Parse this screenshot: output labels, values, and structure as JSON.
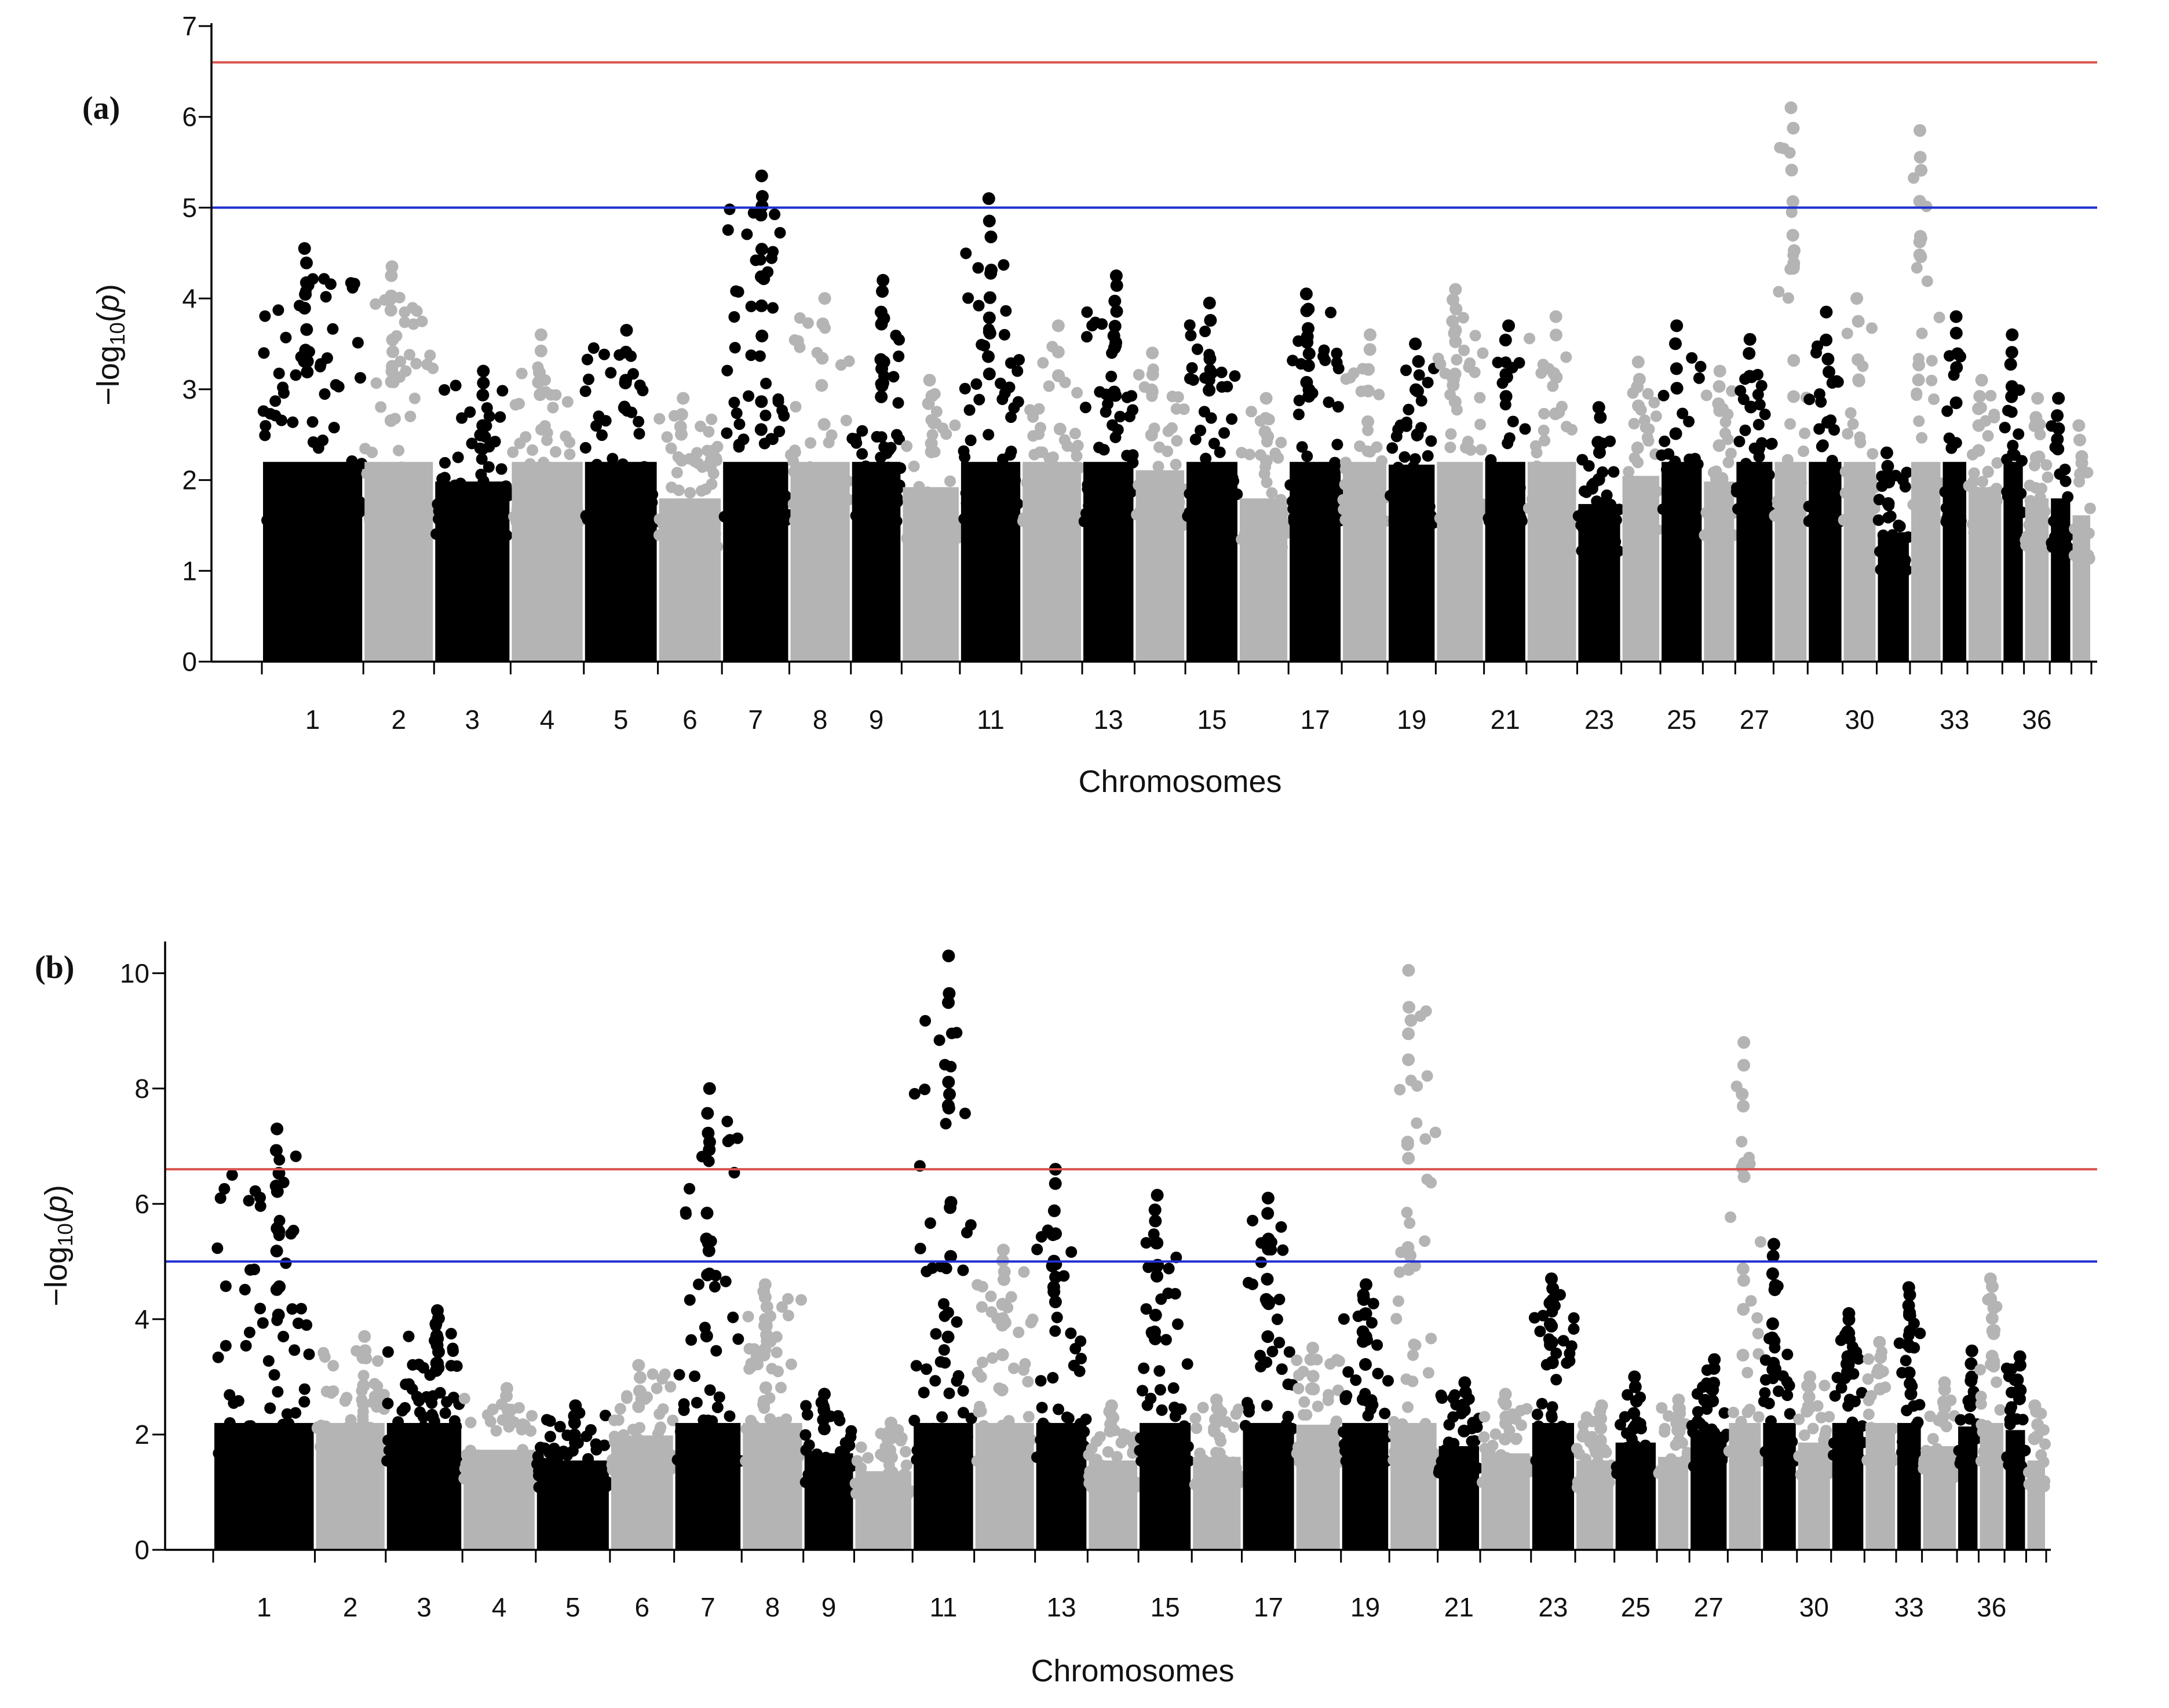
{
  "chart_data": [
    {
      "panel": "(a)",
      "type": "scatter",
      "subtype": "manhattan",
      "xlabel": "Chromosomes",
      "ylabel": "−log10(p)",
      "ylim": [
        0,
        7
      ],
      "yticks": [
        0,
        1,
        2,
        3,
        4,
        5,
        6,
        7
      ],
      "xtick_labels": [
        "1",
        "2",
        "3",
        "4",
        "5",
        "6",
        "7",
        "8",
        "9",
        "11",
        "13",
        "15",
        "17",
        "19",
        "21",
        "23",
        "25",
        "27",
        "30",
        "33",
        "36"
      ],
      "thresholds": [
        {
          "name": "genome-wide",
          "value": 6.6,
          "color": "#d9534f"
        },
        {
          "name": "suggestive",
          "value": 5.0,
          "color": "#1f2fd1"
        }
      ],
      "series_colors": {
        "odd": "#000000",
        "even": "#b4b4b4"
      },
      "chromosomes": [
        {
          "chr": 1,
          "max": 4.55
        },
        {
          "chr": 2,
          "max": 4.35
        },
        {
          "chr": 3,
          "max": 3.2
        },
        {
          "chr": 4,
          "max": 3.6
        },
        {
          "chr": 5,
          "max": 3.65
        },
        {
          "chr": 6,
          "max": 2.9
        },
        {
          "chr": 7,
          "max": 5.35
        },
        {
          "chr": 8,
          "max": 4.0
        },
        {
          "chr": 9,
          "max": 4.2
        },
        {
          "chr": 10,
          "max": 3.1
        },
        {
          "chr": 11,
          "max": 5.1
        },
        {
          "chr": 12,
          "max": 3.7
        },
        {
          "chr": 13,
          "max": 4.25
        },
        {
          "chr": 14,
          "max": 3.4
        },
        {
          "chr": 15,
          "max": 3.95
        },
        {
          "chr": 16,
          "max": 2.9
        },
        {
          "chr": 17,
          "max": 4.05
        },
        {
          "chr": 18,
          "max": 3.6
        },
        {
          "chr": 19,
          "max": 3.5
        },
        {
          "chr": 20,
          "max": 4.1
        },
        {
          "chr": 21,
          "max": 3.7
        },
        {
          "chr": 22,
          "max": 3.8
        },
        {
          "chr": 23,
          "max": 2.8
        },
        {
          "chr": 24,
          "max": 3.3
        },
        {
          "chr": 25,
          "max": 3.7
        },
        {
          "chr": 26,
          "max": 3.2
        },
        {
          "chr": 27,
          "max": 3.55
        },
        {
          "chr": 28,
          "max": 6.1
        },
        {
          "chr": 29,
          "max": 3.85
        },
        {
          "chr": 30,
          "max": 4.0
        },
        {
          "chr": 31,
          "max": 2.3
        },
        {
          "chr": 32,
          "max": 5.85
        },
        {
          "chr": 33,
          "max": 3.8
        },
        {
          "chr": 34,
          "max": 3.1
        },
        {
          "chr": 35,
          "max": 3.6
        },
        {
          "chr": 36,
          "max": 2.9
        },
        {
          "chr": 37,
          "max": 2.9
        },
        {
          "chr": 38,
          "max": 2.6
        }
      ]
    },
    {
      "panel": "(b)",
      "type": "scatter",
      "subtype": "manhattan",
      "xlabel": "Chromosomes",
      "ylabel": "−log10(p)",
      "ylim": [
        0,
        10.5
      ],
      "yticks": [
        0,
        2,
        4,
        6,
        8,
        10
      ],
      "xtick_labels": [
        "1",
        "2",
        "3",
        "4",
        "5",
        "6",
        "7",
        "8",
        "9",
        "11",
        "13",
        "15",
        "17",
        "19",
        "21",
        "23",
        "25",
        "27",
        "30",
        "33",
        "36"
      ],
      "thresholds": [
        {
          "name": "genome-wide",
          "value": 6.6,
          "color": "#d9534f"
        },
        {
          "name": "suggestive",
          "value": 5.0,
          "color": "#1f2fd1"
        }
      ],
      "series_colors": {
        "odd": "#000000",
        "even": "#b4b4b4"
      },
      "chromosomes": [
        {
          "chr": 1,
          "max": 7.3
        },
        {
          "chr": 2,
          "max": 3.7
        },
        {
          "chr": 3,
          "max": 4.15
        },
        {
          "chr": 4,
          "max": 2.8
        },
        {
          "chr": 5,
          "max": 2.5
        },
        {
          "chr": 6,
          "max": 3.2
        },
        {
          "chr": 7,
          "max": 8.0
        },
        {
          "chr": 8,
          "max": 4.6
        },
        {
          "chr": 9,
          "max": 2.7
        },
        {
          "chr": 10,
          "max": 2.2
        },
        {
          "chr": 11,
          "max": 10.3
        },
        {
          "chr": 12,
          "max": 5.2
        },
        {
          "chr": 13,
          "max": 6.6
        },
        {
          "chr": 14,
          "max": 2.5
        },
        {
          "chr": 15,
          "max": 6.15
        },
        {
          "chr": 16,
          "max": 2.6
        },
        {
          "chr": 17,
          "max": 6.1
        },
        {
          "chr": 18,
          "max": 3.5
        },
        {
          "chr": 19,
          "max": 4.6
        },
        {
          "chr": 20,
          "max": 10.05
        },
        {
          "chr": 21,
          "max": 2.9
        },
        {
          "chr": 22,
          "max": 2.7
        },
        {
          "chr": 23,
          "max": 4.7
        },
        {
          "chr": 24,
          "max": 2.5
        },
        {
          "chr": 25,
          "max": 3.0
        },
        {
          "chr": 26,
          "max": 2.6
        },
        {
          "chr": 27,
          "max": 3.3
        },
        {
          "chr": 28,
          "max": 8.8
        },
        {
          "chr": 29,
          "max": 5.3
        },
        {
          "chr": 30,
          "max": 3.0
        },
        {
          "chr": 31,
          "max": 4.1
        },
        {
          "chr": 32,
          "max": 3.6
        },
        {
          "chr": 33,
          "max": 4.55
        },
        {
          "chr": 34,
          "max": 2.9
        },
        {
          "chr": 35,
          "max": 3.45
        },
        {
          "chr": 36,
          "max": 4.7
        },
        {
          "chr": 37,
          "max": 3.35
        },
        {
          "chr": 38,
          "max": 2.5
        }
      ]
    }
  ]
}
